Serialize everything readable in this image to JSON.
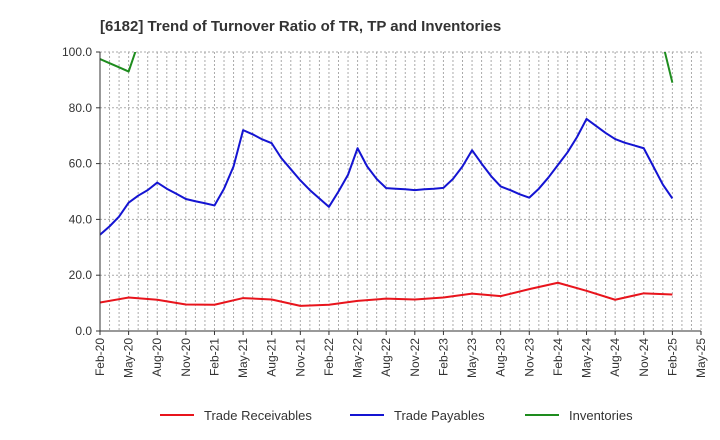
{
  "chart_data": {
    "type": "line",
    "title": "[6182]  Trend of Turnover Ratio of TR, TP and Inventories",
    "xlabel": "",
    "ylabel": "",
    "ylim": [
      0,
      100
    ],
    "y_ticks": [
      "0.0",
      "20.0",
      "40.0",
      "60.0",
      "80.0",
      "100.0"
    ],
    "y_tick_values": [
      0,
      20,
      40,
      60,
      80,
      100
    ],
    "grid": true,
    "legend_position": "bottom",
    "x_labels": [
      "Feb-20",
      "May-20",
      "Aug-20",
      "Nov-20",
      "Feb-21",
      "May-21",
      "Aug-21",
      "Nov-21",
      "Feb-22",
      "May-22",
      "Aug-22",
      "Nov-22",
      "Feb-23",
      "May-23",
      "Aug-23",
      "Nov-23",
      "Feb-24",
      "May-24",
      "Aug-24",
      "Nov-24",
      "Feb-25",
      "May-25"
    ],
    "months": [
      "Feb-20",
      "Mar-20",
      "Apr-20",
      "May-20",
      "Jun-20",
      "Jul-20",
      "Aug-20",
      "Sep-20",
      "Oct-20",
      "Nov-20",
      "Dec-20",
      "Jan-21",
      "Feb-21",
      "Mar-21",
      "Apr-21",
      "May-21",
      "Jun-21",
      "Jul-21",
      "Aug-21",
      "Sep-21",
      "Oct-21",
      "Nov-21",
      "Dec-21",
      "Jan-22",
      "Feb-22",
      "Mar-22",
      "Apr-22",
      "May-22",
      "Jun-22",
      "Jul-22",
      "Aug-22",
      "Sep-22",
      "Oct-22",
      "Nov-22",
      "Dec-22",
      "Jan-23",
      "Feb-23",
      "Mar-23",
      "Apr-23",
      "May-23",
      "Jun-23",
      "Jul-23",
      "Aug-23",
      "Sep-23",
      "Oct-23",
      "Nov-23",
      "Dec-23",
      "Jan-24",
      "Feb-24",
      "Mar-24",
      "Apr-24",
      "May-24",
      "Jun-24",
      "Jul-24",
      "Aug-24",
      "Sep-24",
      "Oct-24",
      "Nov-24",
      "Dec-24",
      "Jan-25",
      "Feb-25",
      "Mar-25",
      "Apr-25",
      "May-25"
    ],
    "series": [
      {
        "name": "Trade Receivables",
        "color": "#e8141c",
        "data": [
          [
            "Feb-20",
            10.2
          ],
          [
            "May-20",
            12.0
          ],
          [
            "Aug-20",
            11.2
          ],
          [
            "Nov-20",
            9.5
          ],
          [
            "Feb-21",
            9.4
          ],
          [
            "May-21",
            11.8
          ],
          [
            "Aug-21",
            11.3
          ],
          [
            "Nov-21",
            9.0
          ],
          [
            "Feb-22",
            9.4
          ],
          [
            "May-22",
            10.8
          ],
          [
            "Aug-22",
            11.6
          ],
          [
            "Nov-22",
            11.3
          ],
          [
            "Feb-23",
            12.0
          ],
          [
            "May-23",
            13.4
          ],
          [
            "Aug-23",
            12.5
          ],
          [
            "Nov-23",
            15.0
          ],
          [
            "Feb-24",
            17.3
          ],
          [
            "May-24",
            14.4
          ],
          [
            "Aug-24",
            11.2
          ],
          [
            "Nov-24",
            13.5
          ],
          [
            "Feb-25",
            13.1
          ]
        ]
      },
      {
        "name": "Trade Payables",
        "color": "#1414d2",
        "data": [
          [
            "Feb-20",
            34.5
          ],
          [
            "Mar-20",
            37.5
          ],
          [
            "Apr-20",
            41.0
          ],
          [
            "May-20",
            46.0
          ],
          [
            "Jun-20",
            48.5
          ],
          [
            "Jul-20",
            50.5
          ],
          [
            "Aug-20",
            53.2
          ],
          [
            "Sep-20",
            51.0
          ],
          [
            "Oct-20",
            49.2
          ],
          [
            "Nov-20",
            47.3
          ],
          [
            "Dec-20",
            46.5
          ],
          [
            "Jan-21",
            45.8
          ],
          [
            "Feb-21",
            45.0
          ],
          [
            "Mar-21",
            51.0
          ],
          [
            "Apr-21",
            59.0
          ],
          [
            "May-21",
            72.0
          ],
          [
            "Jun-21",
            70.5
          ],
          [
            "Jul-21",
            68.7
          ],
          [
            "Aug-21",
            67.3
          ],
          [
            "Sep-21",
            62.0
          ],
          [
            "Oct-21",
            58.0
          ],
          [
            "Nov-21",
            54.0
          ],
          [
            "Dec-21",
            50.5
          ],
          [
            "Jan-22",
            47.5
          ],
          [
            "Feb-22",
            44.5
          ],
          [
            "Mar-22",
            50.0
          ],
          [
            "Apr-22",
            56.0
          ],
          [
            "May-22",
            65.5
          ],
          [
            "Jun-22",
            59.0
          ],
          [
            "Jul-22",
            54.5
          ],
          [
            "Aug-22",
            51.2
          ],
          [
            "Sep-22",
            51.0
          ],
          [
            "Oct-22",
            50.8
          ],
          [
            "Nov-22",
            50.5
          ],
          [
            "Dec-22",
            50.8
          ],
          [
            "Jan-23",
            51.0
          ],
          [
            "Feb-23",
            51.3
          ],
          [
            "Mar-23",
            54.5
          ],
          [
            "Apr-23",
            59.0
          ],
          [
            "May-23",
            64.8
          ],
          [
            "Jun-23",
            60.0
          ],
          [
            "Jul-23",
            55.5
          ],
          [
            "Aug-23",
            51.8
          ],
          [
            "Sep-23",
            50.5
          ],
          [
            "Oct-23",
            49.0
          ],
          [
            "Nov-23",
            47.8
          ],
          [
            "Dec-23",
            51.0
          ],
          [
            "Jan-24",
            55.0
          ],
          [
            "Feb-24",
            59.5
          ],
          [
            "Mar-24",
            64.0
          ],
          [
            "Apr-24",
            69.5
          ],
          [
            "May-24",
            76.0
          ],
          [
            "Jun-24",
            73.5
          ],
          [
            "Jul-24",
            71.0
          ],
          [
            "Aug-24",
            68.8
          ],
          [
            "Sep-24",
            67.5
          ],
          [
            "Oct-24",
            66.5
          ],
          [
            "Nov-24",
            65.5
          ],
          [
            "Dec-24",
            59.0
          ],
          [
            "Jan-25",
            52.5
          ],
          [
            "Feb-25",
            47.5
          ]
        ]
      },
      {
        "name": "Inventories",
        "color": "#1e8c1e",
        "segments": [
          [
            [
              "Feb-20",
              97.5
            ],
            [
              "Mar-20",
              96.0
            ],
            [
              "Apr-20",
              94.5
            ],
            [
              "May-20",
              93.0
            ],
            [
              "Jun-20",
              103.0
            ]
          ],
          [
            [
              "Jan-25",
              103.0
            ],
            [
              "Feb-25",
              89.0
            ]
          ]
        ]
      }
    ]
  }
}
